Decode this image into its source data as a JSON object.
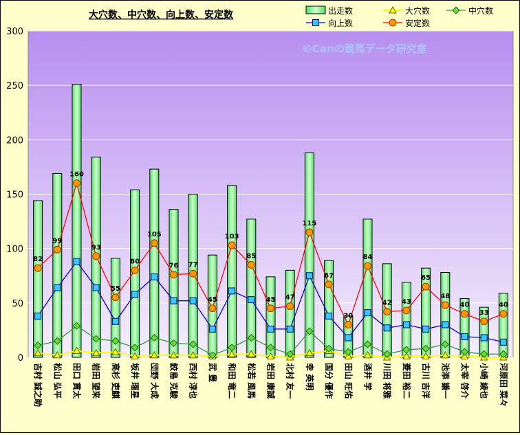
{
  "chart_data": {
    "type": "bar",
    "title": "大穴数、中穴数、向上数、安定数",
    "watermark": "©Canの競馬データ研究室",
    "xlabel": "",
    "ylabel": "",
    "ylim": [
      0,
      300
    ],
    "yticks": [
      0,
      50,
      100,
      150,
      200,
      250,
      300
    ],
    "grid": "horizontal",
    "legend_position": "top-right",
    "categories": [
      "吉村 誠之助",
      "松山 弘平",
      "田口 貫太",
      "岩田 望来",
      "高杉 吏麒",
      "坂井 瑠星",
      "団野 大成",
      "鮫島 克駿",
      "西村 淳也",
      "武 豊",
      "和田 竜二",
      "松若 風馬",
      "岩田 康誠",
      "北村 友一",
      "幸 英明",
      "国分 優作",
      "田山 旺佑",
      "酒井 学",
      "川田 将雅",
      "菱田 裕二",
      "古川 吉洋",
      "池添 謙一",
      "太宰 啓介",
      "小崎 綾也",
      "河原田 菜々"
    ],
    "series": [
      {
        "name": "出走数",
        "type": "bar",
        "color": "#99ff99",
        "values": [
          144,
          169,
          251,
          184,
          91,
          154,
          173,
          136,
          150,
          94,
          158,
          127,
          74,
          80,
          188,
          89,
          38,
          127,
          86,
          69,
          82,
          78,
          54,
          46,
          59
        ]
      },
      {
        "name": "大穴数",
        "type": "line",
        "color": "#ffff00",
        "marker": "triangle",
        "values": [
          4,
          2,
          6,
          4,
          5,
          1,
          2,
          2,
          2,
          1,
          3,
          3,
          1,
          0,
          4,
          6,
          1,
          2,
          0,
          1,
          1,
          2,
          1,
          0,
          0
        ]
      },
      {
        "name": "中穴数",
        "type": "line",
        "color": "#339933",
        "marker": "diamond",
        "values": [
          11,
          15,
          29,
          17,
          15,
          9,
          18,
          13,
          12,
          2,
          9,
          18,
          9,
          3,
          24,
          8,
          5,
          12,
          3,
          7,
          8,
          12,
          5,
          3,
          3
        ]
      },
      {
        "name": "向上数",
        "type": "line",
        "color": "#0000cc",
        "marker": "square",
        "values": [
          38,
          64,
          88,
          64,
          33,
          58,
          74,
          52,
          52,
          26,
          61,
          53,
          26,
          26,
          75,
          38,
          18,
          41,
          27,
          30,
          26,
          30,
          19,
          18,
          14
        ]
      },
      {
        "name": "安定数",
        "type": "line",
        "color": "#ff0000",
        "marker": "circle",
        "labels": true,
        "values": [
          82,
          99,
          160,
          93,
          55,
          80,
          105,
          76,
          77,
          45,
          103,
          85,
          45,
          47,
          115,
          67,
          30,
          84,
          42,
          43,
          65,
          48,
          40,
          33,
          40
        ]
      }
    ]
  }
}
